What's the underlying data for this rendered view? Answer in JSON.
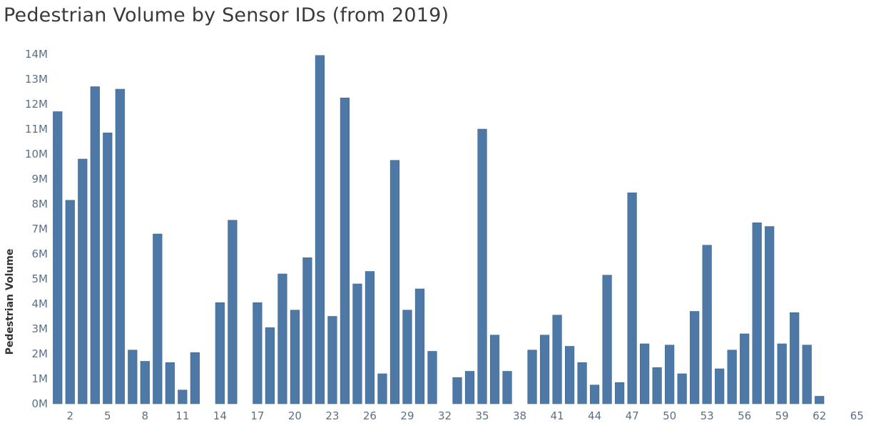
{
  "chart_data": {
    "type": "bar",
    "title": "Pedestrian Volume by Sensor IDs (from 2019)",
    "xlabel": "",
    "ylabel": "Pedestrian Volume",
    "x_ticks": [
      "2",
      "5",
      "8",
      "11",
      "14",
      "17",
      "20",
      "23",
      "26",
      "29",
      "32",
      "35",
      "38",
      "41",
      "44",
      "47",
      "50",
      "53",
      "56",
      "59",
      "62",
      "65"
    ],
    "y_ticks": [
      "0M",
      "1M",
      "2M",
      "3M",
      "4M",
      "5M",
      "6M",
      "7M",
      "8M",
      "9M",
      "10M",
      "11M",
      "12M",
      "13M",
      "14M"
    ],
    "ylim": [
      0,
      14
    ],
    "xlim": [
      0.5,
      65.5
    ],
    "y_unit": "M",
    "grid": false,
    "color": "#4e79a7",
    "sensor_ids": [
      1,
      2,
      3,
      4,
      5,
      6,
      7,
      8,
      9,
      10,
      11,
      12,
      13,
      14,
      15,
      16,
      17,
      18,
      19,
      20,
      21,
      22,
      23,
      24,
      25,
      26,
      27,
      28,
      29,
      30,
      31,
      32,
      33,
      34,
      35,
      36,
      37,
      38,
      39,
      40,
      41,
      42,
      43,
      44,
      45,
      46,
      47,
      48,
      49,
      50,
      51,
      52,
      53,
      54,
      55,
      56,
      57,
      58,
      59,
      60,
      61,
      62,
      63,
      64,
      65
    ],
    "values": [
      11.7,
      8.15,
      9.8,
      12.7,
      10.85,
      12.6,
      2.15,
      1.7,
      6.8,
      1.65,
      0.55,
      2.05,
      null,
      4.05,
      7.35,
      null,
      4.05,
      3.05,
      5.2,
      3.75,
      5.85,
      13.95,
      3.5,
      12.25,
      4.8,
      5.3,
      1.2,
      9.75,
      3.75,
      4.6,
      2.1,
      null,
      1.05,
      1.3,
      11.0,
      2.75,
      1.3,
      null,
      2.15,
      2.75,
      3.55,
      2.3,
      1.65,
      0.75,
      5.15,
      0.85,
      8.45,
      2.4,
      1.45,
      2.35,
      1.2,
      3.7,
      6.35,
      1.4,
      2.15,
      2.8,
      7.25,
      7.1,
      2.4,
      3.65,
      2.35,
      0.3,
      null,
      null,
      null
    ]
  }
}
